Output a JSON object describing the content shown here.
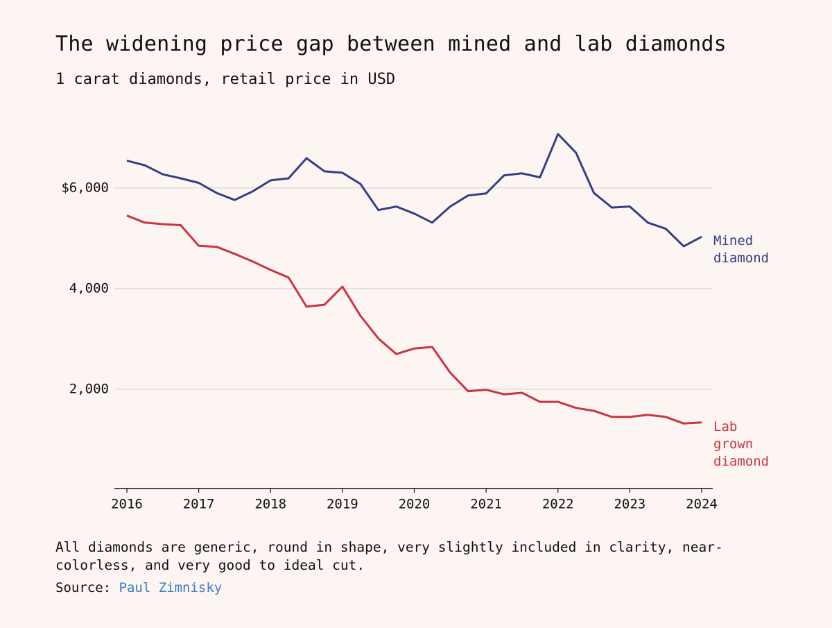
{
  "chart_data": {
    "type": "line",
    "title": "The widening price gap between mined and lab diamonds",
    "subtitle": "1 carat diamonds, retail price in USD",
    "note": "All diamonds are generic, round in shape, very slightly included in clarity, near-colorless, and very good to ideal cut.",
    "source_label": "Source:",
    "source": "Paul Zimnisky",
    "x": [
      2016,
      2016.25,
      2016.5,
      2016.75,
      2017,
      2017.25,
      2017.5,
      2017.75,
      2018,
      2018.25,
      2018.5,
      2018.75,
      2019,
      2019.25,
      2019.5,
      2019.75,
      2020,
      2020.25,
      2020.5,
      2020.75,
      2021,
      2021.25,
      2021.5,
      2021.75,
      2022,
      2022.25,
      2022.5,
      2022.75,
      2023,
      2023.25,
      2023.5,
      2023.75,
      2024
    ],
    "series": [
      {
        "name": "Mined diamond",
        "color": "#323f86",
        "values": [
          6540,
          6450,
          6270,
          6190,
          6100,
          5900,
          5760,
          5930,
          6150,
          6190,
          6590,
          6330,
          6300,
          6080,
          5560,
          5630,
          5490,
          5310,
          5630,
          5850,
          5890,
          6250,
          6290,
          6210,
          7070,
          6700,
          5900,
          5610,
          5630,
          5310,
          5190,
          4840,
          5030
        ]
      },
      {
        "name": "Lab grown diamond",
        "color": "#cc3340",
        "values": [
          5450,
          5310,
          5280,
          5260,
          4850,
          4830,
          4690,
          4540,
          4370,
          4220,
          3640,
          3680,
          4040,
          3460,
          3010,
          2700,
          2810,
          2840,
          2330,
          1960,
          1990,
          1900,
          1930,
          1750,
          1750,
          1630,
          1570,
          1450,
          1450,
          1490,
          1450,
          1320,
          1340
        ]
      }
    ],
    "xlim": [
      2016,
      2024
    ],
    "xticks": [
      2016,
      2017,
      2018,
      2019,
      2020,
      2021,
      2022,
      2023,
      2024
    ],
    "ylim": [
      0,
      7500
    ],
    "yticks": [
      {
        "value": 2000,
        "label": "2,000"
      },
      {
        "value": 4000,
        "label": "4,000"
      },
      {
        "value": 6000,
        "label": "$6,000"
      }
    ],
    "grid": true
  }
}
